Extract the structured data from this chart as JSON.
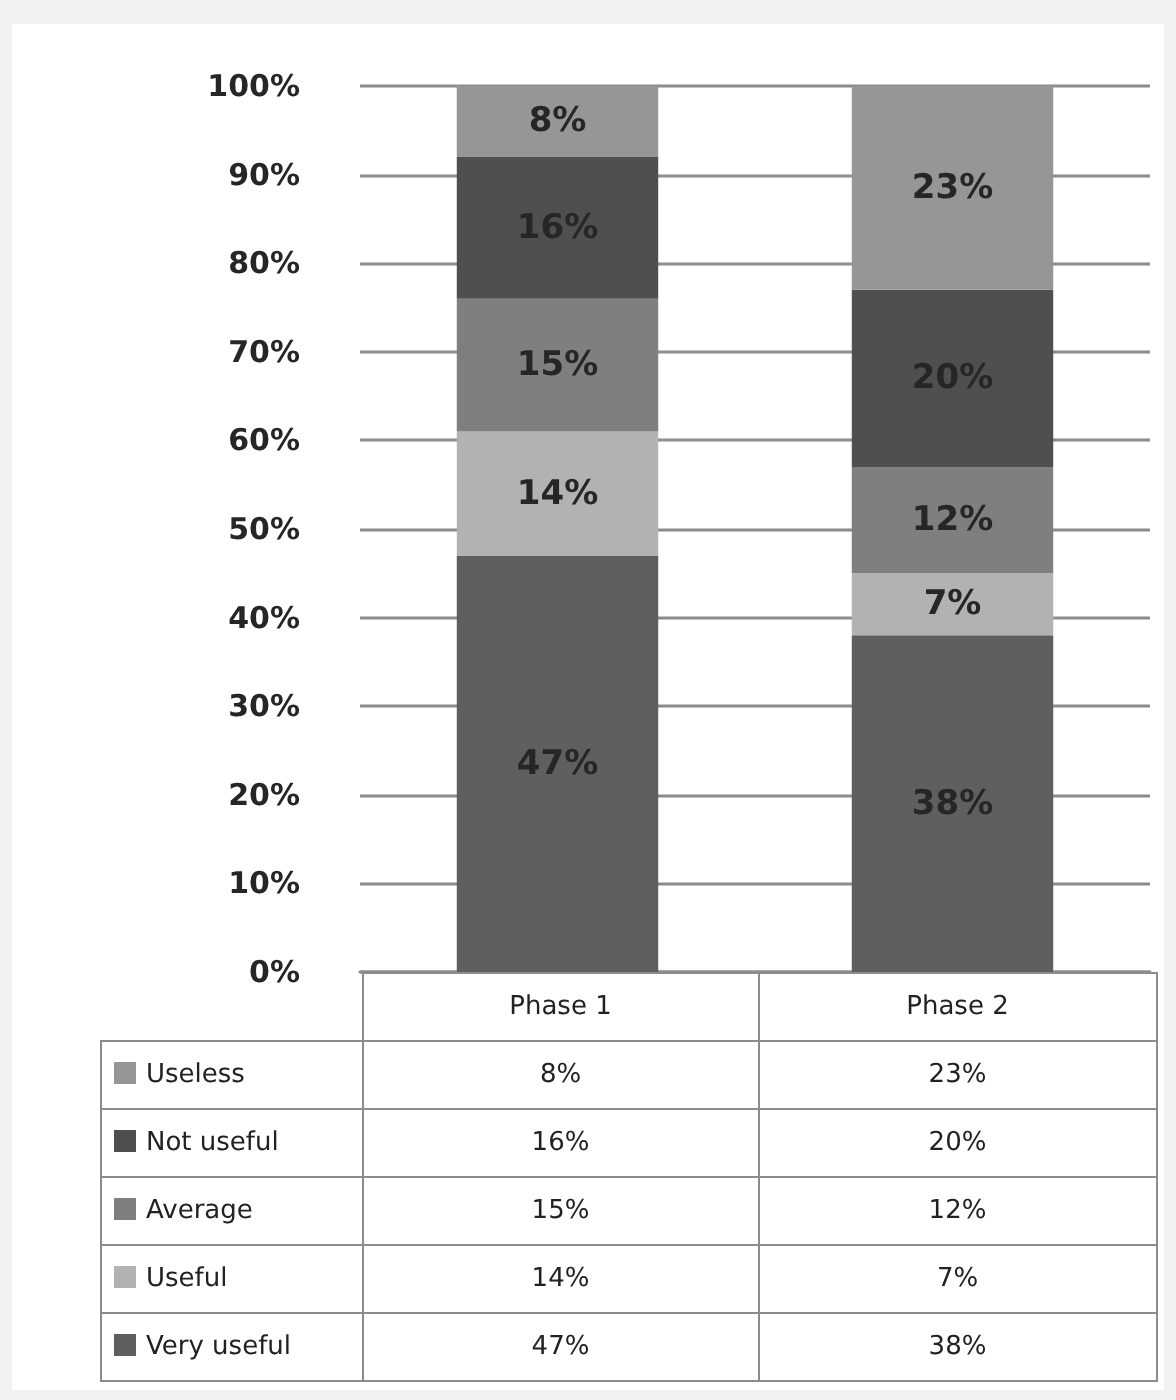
{
  "chart_data": {
    "type": "bar",
    "stacked": true,
    "categories": [
      "Phase 1",
      "Phase 2"
    ],
    "series": [
      {
        "name": "Very useful",
        "color": "#5f5f5f",
        "values": [
          47,
          38
        ],
        "value_labels": [
          "47%",
          "38%"
        ]
      },
      {
        "name": "Useful",
        "color": "#b2b2b2",
        "values": [
          14,
          7
        ],
        "value_labels": [
          "14%",
          "7%"
        ]
      },
      {
        "name": "Average",
        "color": "#7f7f7f",
        "values": [
          15,
          12
        ],
        "value_labels": [
          "15%",
          "12%"
        ]
      },
      {
        "name": "Not useful",
        "color": "#4f4f4f",
        "values": [
          16,
          20
        ],
        "value_labels": [
          "16%",
          "20%"
        ]
      },
      {
        "name": "Useless",
        "color": "#969696",
        "values": [
          8,
          23
        ],
        "value_labels": [
          "8%",
          "23%"
        ]
      }
    ],
    "ylim": [
      0,
      100
    ],
    "yticks": [
      {
        "value": 0,
        "label": "0%"
      },
      {
        "value": 10,
        "label": "10%"
      },
      {
        "value": 20,
        "label": "20%"
      },
      {
        "value": 30,
        "label": "30%"
      },
      {
        "value": 40,
        "label": "40%"
      },
      {
        "value": 50,
        "label": "50%"
      },
      {
        "value": 60,
        "label": "60%"
      },
      {
        "value": 70,
        "label": "70%"
      },
      {
        "value": 80,
        "label": "80%"
      },
      {
        "value": 90,
        "label": "90%"
      },
      {
        "value": 100,
        "label": "100%"
      }
    ],
    "grid": "y",
    "legend": "bottom"
  }
}
